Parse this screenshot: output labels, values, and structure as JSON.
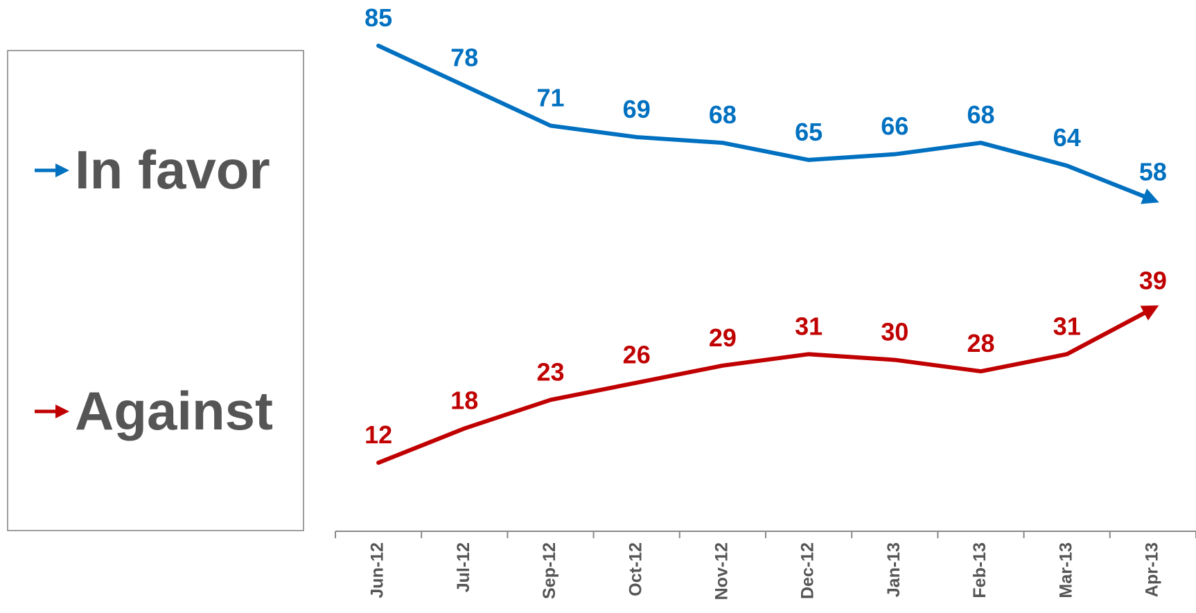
{
  "chart_data": {
    "type": "line",
    "categories": [
      "Jun-12",
      "Jul-12",
      "Sep-12",
      "Oct-12",
      "Nov-12",
      "Dec-12",
      "Jan-13",
      "Feb-13",
      "Mar-13",
      "Apr-13"
    ],
    "series": [
      {
        "name": "In favor",
        "color": "#0070c0",
        "values": [
          85,
          78,
          71,
          69,
          68,
          65,
          66,
          68,
          64,
          58
        ]
      },
      {
        "name": "Against",
        "color": "#c00000",
        "values": [
          12,
          18,
          23,
          26,
          29,
          31,
          30,
          28,
          31,
          39
        ]
      }
    ],
    "ylim": [
      0,
      93
    ],
    "legend": "left"
  }
}
